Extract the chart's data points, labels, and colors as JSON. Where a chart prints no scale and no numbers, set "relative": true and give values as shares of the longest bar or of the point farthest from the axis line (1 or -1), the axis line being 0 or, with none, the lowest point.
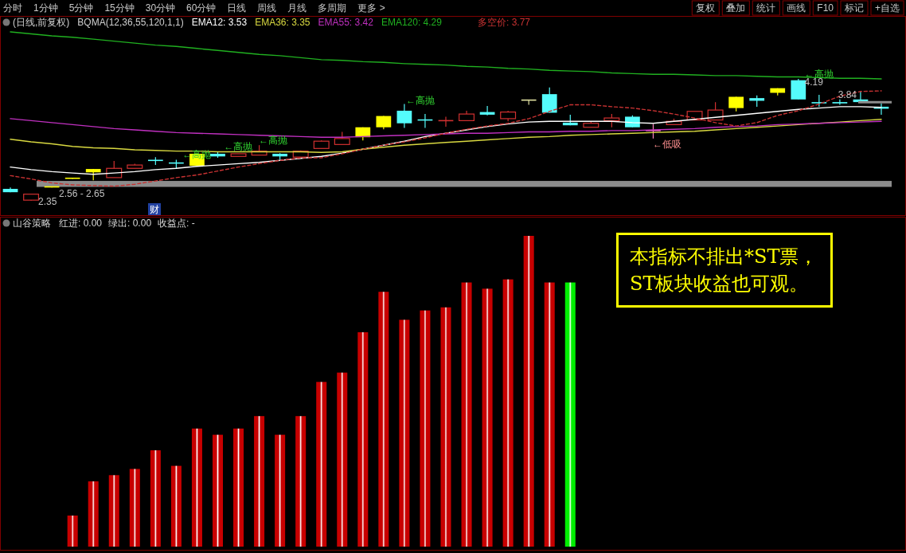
{
  "chart_data": [
    {
      "type": "other",
      "annotations": [
        "分时",
        "1分钟",
        "5分钟",
        "15分钟",
        "30分钟",
        "60分钟",
        "日线",
        "周线",
        "月线",
        "多周期",
        "更多 >"
      ]
    },
    {
      "type": "other",
      "annotations": [
        "复权",
        "叠加",
        "统计",
        "画线",
        "F10",
        "标记",
        "+自选"
      ]
    },
    {
      "type": "candlestick",
      "title": "(日线,前复权)",
      "subtitle": "BQMA(12,36,55,120,1,1)",
      "legend": "top left",
      "categories": [
        null,
        null,
        null,
        null,
        null,
        null,
        null,
        null,
        null,
        null,
        null,
        null,
        null,
        null,
        null,
        null,
        null,
        null,
        null,
        null,
        null,
        null,
        null,
        null,
        null,
        null,
        null,
        null,
        null,
        null,
        null,
        null,
        null,
        null,
        null,
        null,
        null,
        null,
        null,
        null,
        null,
        null,
        null
      ],
      "ohlc": [
        [
          2.53,
          2.55,
          2.48,
          2.48
        ],
        [
          2.36,
          2.45,
          2.35,
          2.45
        ],
        [
          2.56,
          2.56,
          2.55,
          2.55
        ],
        [
          2.69,
          2.69,
          2.68,
          2.68
        ],
        [
          2.83,
          2.83,
          2.66,
          2.78
        ],
        [
          2.7,
          2.95,
          2.7,
          2.84
        ],
        [
          2.84,
          2.91,
          2.84,
          2.89
        ],
        [
          2.96,
          3.01,
          2.89,
          2.96
        ],
        [
          2.92,
          2.97,
          2.83,
          2.91
        ],
        [
          3.06,
          3.06,
          2.88,
          2.88
        ],
        [
          3.06,
          3.09,
          3.0,
          3.02
        ],
        [
          3.02,
          3.06,
          3.02,
          3.06
        ],
        [
          3.04,
          3.19,
          3.04,
          3.1
        ],
        [
          3.06,
          3.07,
          2.97,
          3.02
        ],
        [
          3.01,
          3.11,
          3.01,
          3.1
        ],
        [
          3.14,
          3.26,
          3.14,
          3.25
        ],
        [
          3.2,
          3.39,
          3.2,
          3.29
        ],
        [
          3.46,
          3.46,
          3.26,
          3.31
        ],
        [
          3.63,
          3.63,
          3.43,
          3.46
        ],
        [
          3.71,
          3.81,
          3.45,
          3.52
        ],
        [
          3.57,
          3.66,
          3.45,
          3.57
        ],
        [
          3.56,
          3.62,
          3.47,
          3.56
        ],
        [
          3.56,
          3.71,
          3.56,
          3.66
        ],
        [
          3.69,
          3.78,
          3.64,
          3.65
        ],
        [
          3.59,
          3.71,
          3.55,
          3.69
        ],
        [
          3.87,
          3.87,
          3.8,
          3.87
        ],
        [
          3.96,
          4.06,
          3.68,
          3.68
        ],
        [
          3.53,
          3.65,
          3.49,
          3.49
        ],
        [
          3.46,
          3.55,
          3.46,
          3.52
        ],
        [
          3.56,
          3.66,
          3.46,
          3.6
        ],
        [
          3.62,
          3.64,
          3.46,
          3.46
        ],
        [
          3.41,
          3.51,
          3.29,
          3.41
        ],
        [
          3.5,
          3.59,
          3.5,
          3.55
        ],
        [
          3.57,
          3.7,
          3.57,
          3.7
        ],
        [
          3.57,
          3.84,
          3.57,
          3.72
        ],
        [
          3.92,
          3.92,
          3.7,
          3.75
        ],
        [
          3.9,
          3.94,
          3.77,
          3.86
        ],
        [
          4.05,
          4.05,
          3.94,
          3.98
        ],
        [
          4.17,
          4.19,
          3.88,
          3.88
        ],
        [
          3.83,
          3.95,
          3.77,
          3.83
        ],
        [
          3.84,
          3.88,
          3.8,
          3.82
        ],
        [
          3.88,
          4.0,
          3.84,
          3.84
        ],
        [
          3.77,
          3.82,
          3.65,
          3.74
        ]
      ],
      "colors": [
        "#54fcfc",
        "#d03030",
        "#ffff00",
        "#ffff00",
        "#ffff00",
        "#d03030",
        "#d03030",
        "#54fcfc",
        "#54fcfc",
        "#ffff00",
        "#54fcfc",
        "#d03030",
        "#d03030",
        "#54fcfc",
        "#d03030",
        "#d03030",
        "#d03030",
        "#ffff00",
        "#ffff00",
        "#54fcfc",
        "#54fcfc",
        "#d03030",
        "#d03030",
        "#54fcfc",
        "#d03030",
        "#e0e0a0",
        "#54fcfc",
        "#54fcfc",
        "#d03030",
        "#d03030",
        "#54fcfc",
        "#ff80c0",
        "#d03030",
        "#d03030",
        "#d03030",
        "#ffff00",
        "#54fcfc",
        "#ffff00",
        "#54fcfc",
        "#54fcfc",
        "#54fcfc",
        "#54fcfc",
        "#54fcfc"
      ],
      "series": [
        {
          "name": "EMA12: 3.53",
          "type": "line",
          "color": "#ffffff",
          "values": [
            2.86,
            2.82,
            2.79,
            2.77,
            2.75,
            2.77,
            2.79,
            2.82,
            2.84,
            2.87,
            2.89,
            2.91,
            2.93,
            2.96,
            2.99,
            3.02,
            3.07,
            3.13,
            3.19,
            3.25,
            3.32,
            3.37,
            3.42,
            3.47,
            3.51,
            3.54,
            3.55,
            3.55,
            3.55,
            3.55,
            3.53,
            3.52,
            3.55,
            3.58,
            3.61,
            3.64,
            3.67,
            3.7,
            3.73,
            3.75,
            3.77,
            3.77,
            3.76
          ]
        },
        {
          "name": "EMA36: 3.35",
          "type": "line",
          "color": "#d8d840",
          "values": [
            3.28,
            3.24,
            3.21,
            3.17,
            3.15,
            3.14,
            3.12,
            3.11,
            3.1,
            3.1,
            3.09,
            3.09,
            3.09,
            3.09,
            3.09,
            3.08,
            3.09,
            3.13,
            3.16,
            3.19,
            3.21,
            3.23,
            3.25,
            3.27,
            3.29,
            3.31,
            3.32,
            3.34,
            3.35,
            3.36,
            3.37,
            3.38,
            3.39,
            3.4,
            3.42,
            3.44,
            3.46,
            3.48,
            3.5,
            3.52,
            3.54,
            3.56,
            3.58
          ]
        },
        {
          "name": "EMA55: 3.42",
          "type": "line",
          "color": "#c030c0",
          "values": [
            3.59,
            3.56,
            3.53,
            3.5,
            3.47,
            3.44,
            3.42,
            3.4,
            3.38,
            3.37,
            3.36,
            3.35,
            3.34,
            3.33,
            3.32,
            3.31,
            3.31,
            3.32,
            3.33,
            3.34,
            3.35,
            3.36,
            3.37,
            3.37,
            3.38,
            3.39,
            3.39,
            3.4,
            3.4,
            3.41,
            3.41,
            3.42,
            3.43,
            3.44,
            3.46,
            3.47,
            3.48,
            3.5,
            3.51,
            3.52,
            3.53,
            3.54,
            3.55
          ]
        },
        {
          "name": "EMA120: 4.29",
          "type": "line",
          "color": "#20b020",
          "values": [
            4.9,
            4.87,
            4.84,
            4.82,
            4.79,
            4.76,
            4.73,
            4.7,
            4.68,
            4.65,
            4.62,
            4.59,
            4.56,
            4.54,
            4.51,
            4.48,
            4.47,
            4.45,
            4.44,
            4.42,
            4.41,
            4.4,
            4.38,
            4.37,
            4.35,
            4.34,
            4.32,
            4.31,
            4.3,
            4.28,
            4.27,
            4.26,
            4.26,
            4.25,
            4.24,
            4.24,
            4.23,
            4.22,
            4.22,
            4.21,
            4.2,
            4.2,
            4.19
          ]
        },
        {
          "name": "多空价: 3.77",
          "type": "line",
          "color": "#c83232",
          "line_style": "dashed",
          "values": [
            2.73,
            2.68,
            2.62,
            2.59,
            2.58,
            2.57,
            2.6,
            2.65,
            2.7,
            2.74,
            2.8,
            2.86,
            2.91,
            2.96,
            3.0,
            3.0,
            3.06,
            3.13,
            3.19,
            3.24,
            3.3,
            3.37,
            3.43,
            3.48,
            3.52,
            3.59,
            3.7,
            3.8,
            3.8,
            3.77,
            3.75,
            3.71,
            3.66,
            3.6,
            3.53,
            3.48,
            3.53,
            3.64,
            3.71,
            3.81,
            3.93,
            4.0,
            4.01
          ]
        }
      ],
      "bands": [
        {
          "axis": "y",
          "from": 2.56,
          "to": 2.65,
          "label": "2.56 - 2.65",
          "color": "#8c8c8c"
        }
      ],
      "ref_lines": [
        {
          "axis": "y",
          "value": 3.84,
          "label": "3.84",
          "color": "#8c8c8c"
        }
      ],
      "annotations": [
        "财",
        "←高抛",
        "←高抛",
        "←低吸",
        "2.35",
        {
          "text": "←高抛",
          "y": 2.97
        },
        {
          "text": "←高抛",
          "y": 3.09
        },
        {
          "text": "←高抛",
          "y": 4.19
        },
        {
          "text": "4.19",
          "y": 4.19
        }
      ]
    },
    {
      "type": "bar",
      "title": "山谷策略",
      "relative": true,
      "categories": [
        null,
        null,
        null,
        null,
        null,
        null,
        null,
        null,
        null,
        null,
        null,
        null,
        null,
        null,
        null,
        null,
        null,
        null,
        null,
        null,
        null,
        null,
        null,
        null,
        null,
        null,
        null,
        null,
        null,
        null,
        null,
        null,
        null,
        null,
        null,
        null,
        null,
        null,
        null,
        null,
        null,
        null,
        null
      ],
      "values": [
        null,
        null,
        null,
        0.1,
        0.21,
        0.23,
        0.25,
        0.31,
        0.26,
        0.38,
        0.36,
        0.38,
        0.42,
        0.36,
        0.42,
        0.53,
        0.56,
        0.69,
        0.82,
        0.73,
        0.76,
        0.77,
        0.85,
        0.83,
        0.86,
        1,
        0.85,
        0.85,
        null,
        null,
        null,
        null,
        null,
        null,
        null,
        null,
        null,
        null,
        null,
        null,
        null,
        null,
        null
      ],
      "colors": [
        null,
        null,
        null,
        "#c80000",
        "#c80000",
        "#c80000",
        "#c80000",
        "#c80000",
        "#c80000",
        "#c80000",
        "#c80000",
        "#c80000",
        "#c80000",
        "#c80000",
        "#c80000",
        "#c80000",
        "#c80000",
        "#c80000",
        "#c80000",
        "#c80000",
        "#c80000",
        "#c80000",
        "#c80000",
        "#c80000",
        "#c80000",
        "#c80000",
        "#c80000",
        "#00ee00",
        null,
        null,
        null,
        null,
        null,
        null,
        null,
        null,
        null,
        null,
        null,
        null,
        null,
        null,
        null
      ],
      "annotations": [
        "红进: 0.00",
        "绿出: 0.00",
        "收益点: -",
        "本指标不排出*ST票，ST板块收益也可观。"
      ]
    }
  ]
}
